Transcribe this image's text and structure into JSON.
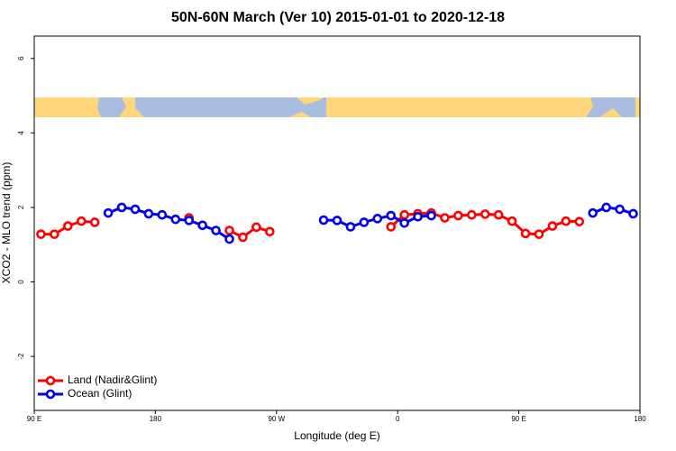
{
  "chart_data": {
    "type": "line",
    "title": "50N-60N March (Ver 10)   2015-01-01 to 2020-12-18",
    "x_label": "Longitude (deg E)",
    "y_label": "XCO2 - MLO trend (ppm)",
    "x": [
      95,
      105,
      115,
      125,
      135,
      145,
      155,
      165,
      175,
      185,
      195,
      205,
      215,
      225,
      235,
      245,
      255,
      265,
      275,
      285,
      295,
      305,
      315,
      325,
      335,
      345,
      355,
      365,
      375,
      385,
      395,
      405,
      415,
      425,
      435,
      445,
      455,
      465,
      475,
      485,
      495,
      505,
      515,
      525,
      535
    ],
    "series": [
      {
        "name": "Land (Nadir&Glint)",
        "color": "#ff0000",
        "values": [
          1.28,
          1.28,
          1.5,
          1.63,
          1.6,
          null,
          null,
          null,
          null,
          null,
          null,
          1.72,
          null,
          null,
          1.38,
          1.2,
          1.47,
          1.35,
          null,
          null,
          null,
          null,
          null,
          null,
          null,
          null,
          1.48,
          1.8,
          1.83,
          1.85,
          1.72,
          1.78,
          1.8,
          1.82,
          1.8,
          1.63,
          1.3,
          1.28,
          1.5,
          1.63,
          1.62,
          null,
          null,
          null,
          null
        ]
      },
      {
        "name": "Ocean (Glint)",
        "color": "#0000ee",
        "values": [
          null,
          null,
          null,
          null,
          null,
          1.85,
          2.0,
          1.95,
          1.83,
          1.8,
          1.68,
          1.65,
          1.52,
          1.38,
          1.15,
          null,
          null,
          null,
          null,
          null,
          null,
          1.66,
          1.65,
          1.48,
          1.6,
          1.7,
          1.78,
          1.58,
          1.75,
          1.78,
          null,
          null,
          null,
          null,
          null,
          null,
          null,
          null,
          null,
          null,
          null,
          1.85,
          2.0,
          1.95,
          1.83
        ]
      }
    ],
    "xlim": [
      90,
      540
    ],
    "xticks": [
      {
        "value": 90,
        "label": "90 E"
      },
      180,
      {
        "value": 270,
        "label": "90 W"
      },
      {
        "value": 360,
        "label": "0"
      },
      {
        "value": 450,
        "label": "90 E"
      },
      {
        "value": 540,
        "label": "180"
      }
    ],
    "ylim": [
      -3.45,
      6.6
    ],
    "yticks": [
      -2,
      0,
      2,
      4,
      6
    ],
    "legend": "bottom-left"
  }
}
